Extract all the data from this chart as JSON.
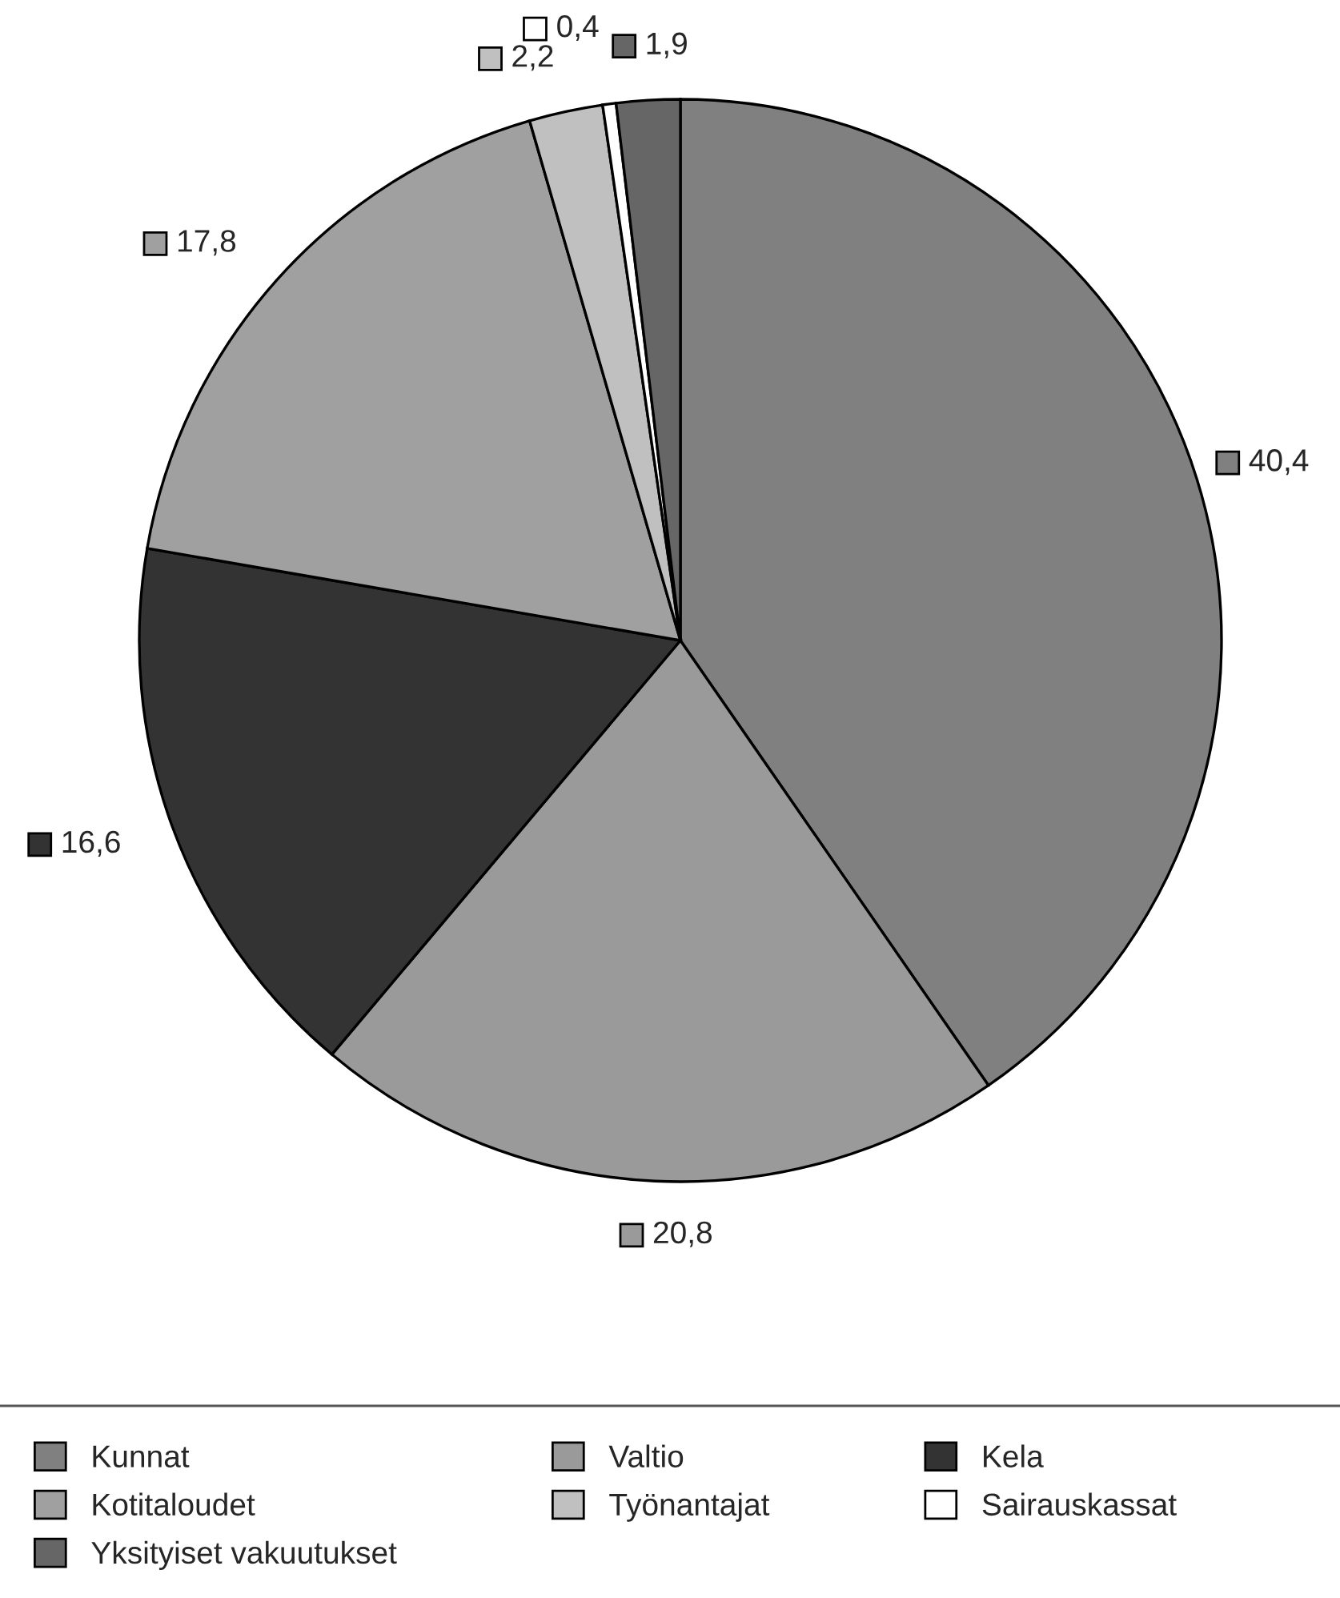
{
  "chart_data": {
    "type": "pie",
    "categories": [
      "Kunnat",
      "Valtio",
      "Kela",
      "Kotitaloudet",
      "Työnantajat",
      "Sairauskassat",
      "Yksityiset vakuutukset"
    ],
    "values": [
      40.4,
      20.8,
      16.6,
      17.8,
      2.2,
      0.4,
      1.9
    ],
    "value_labels": [
      "40,4",
      "20,8",
      "16,6",
      "17,8",
      "2,2",
      "0,4",
      "1,9"
    ],
    "colors": [
      "#808080",
      "#9a9a9a",
      "#333333",
      "#a0a0a0",
      "#c0c0c0",
      "#ffffff",
      "#666666"
    ],
    "legend": "bottom"
  }
}
